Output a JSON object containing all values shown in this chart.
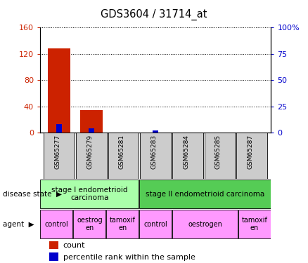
{
  "title": "GDS3604 / 31714_at",
  "samples": [
    "GSM65277",
    "GSM65279",
    "GSM65281",
    "GSM65283",
    "GSM65284",
    "GSM65285",
    "GSM65287"
  ],
  "count_values": [
    128,
    35,
    0,
    0,
    0,
    0,
    0
  ],
  "percentile_values": [
    8,
    4,
    0.5,
    2,
    0.3,
    0.3,
    0.3
  ],
  "left_ylim": [
    0,
    160
  ],
  "left_yticks": [
    0,
    40,
    80,
    120,
    160
  ],
  "right_ylim": [
    0,
    100
  ],
  "right_yticks": [
    0,
    25,
    50,
    75,
    100
  ],
  "right_yticklabels": [
    "0",
    "25",
    "50",
    "75",
    "100%"
  ],
  "count_color": "#cc2200",
  "percentile_color": "#0000cc",
  "disease_state_groups": [
    {
      "label": "stage I endometrioid\ncarcinoma",
      "start": 0,
      "end": 3,
      "color": "#aaffaa"
    },
    {
      "label": "stage II endometrioid carcinoma",
      "start": 3,
      "end": 7,
      "color": "#55cc55"
    }
  ],
  "agent_groups": [
    {
      "label": "control",
      "start": 0,
      "end": 1,
      "color": "#ff99ff"
    },
    {
      "label": "oestrog\nen",
      "start": 1,
      "end": 2,
      "color": "#ff99ff"
    },
    {
      "label": "tamoxif\nen",
      "start": 2,
      "end": 3,
      "color": "#ff99ff"
    },
    {
      "label": "control",
      "start": 3,
      "end": 4,
      "color": "#ff99ff"
    },
    {
      "label": "oestrogen",
      "start": 4,
      "end": 6,
      "color": "#ff99ff"
    },
    {
      "label": "tamoxif\nen",
      "start": 6,
      "end": 7,
      "color": "#ff99ff"
    }
  ],
  "tick_label_color_left": "#cc2200",
  "tick_label_color_right": "#0000cc",
  "sample_bg_color": "#cccccc",
  "bar_width": 0.7
}
